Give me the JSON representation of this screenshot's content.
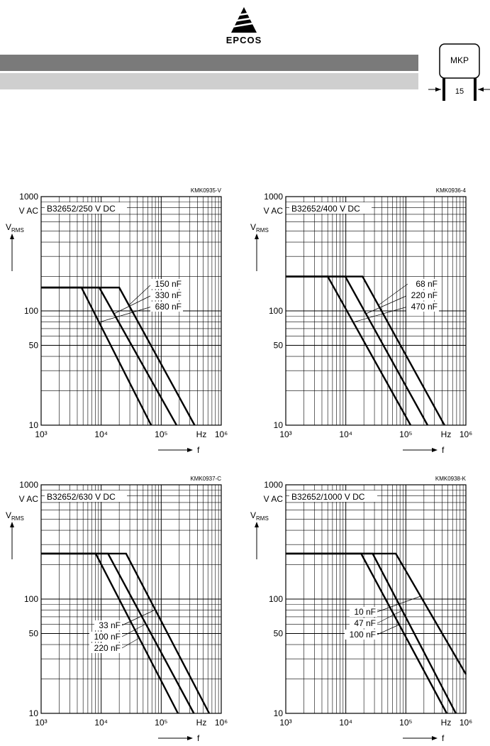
{
  "header": {
    "logo": "EPCOS",
    "package": "MKP",
    "pitch": "15"
  },
  "chart_data": [
    {
      "type": "line",
      "title": "KMK0935-V",
      "subtitle": "B32652/250 V DC",
      "xlabel": "f",
      "xunit": "Hz",
      "ylabel": "V",
      "ylabel_sub": "RMS",
      "yunit": "V AC",
      "log_x": true,
      "log_y": true,
      "grid": true,
      "color": "#000000",
      "xlim": [
        1000,
        1000000
      ],
      "ylim": [
        10,
        1000
      ],
      "xticks": [
        {
          "value": 1000,
          "label": "10³"
        },
        {
          "value": 10000,
          "label": "10⁴"
        },
        {
          "value": 100000,
          "label": "10⁵"
        },
        {
          "value": 1000000,
          "label": "10⁶"
        }
      ],
      "yticks": [
        10,
        50,
        100,
        1000
      ],
      "series": [
        {
          "name": "150 nF",
          "x": [
            1000,
            20000,
            360000
          ],
          "values": [
            160,
            160,
            10
          ]
        },
        {
          "name": "330 nF",
          "x": [
            1000,
            9300,
            180000
          ],
          "values": [
            160,
            160,
            10
          ]
        },
        {
          "name": "680 nF",
          "x": [
            1000,
            4700,
            68000
          ],
          "values": [
            160,
            160,
            10
          ]
        }
      ]
    },
    {
      "type": "line",
      "title": "KMK0936-4",
      "subtitle": "B32652/400 V DC",
      "xlabel": "f",
      "xunit": "Hz",
      "ylabel": "V",
      "ylabel_sub": "RMS",
      "yunit": "V AC",
      "log_x": true,
      "log_y": true,
      "grid": true,
      "color": "#000000",
      "xlim": [
        1000,
        1000000
      ],
      "ylim": [
        10,
        1000
      ],
      "xticks": [
        {
          "value": 1000,
          "label": "10³"
        },
        {
          "value": 10000,
          "label": "10⁴"
        },
        {
          "value": 100000,
          "label": "10⁵"
        },
        {
          "value": 1000000,
          "label": "10⁶"
        }
      ],
      "yticks": [
        10,
        50,
        100,
        1000
      ],
      "series": [
        {
          "name": "68 nF",
          "x": [
            1000,
            19000,
            440000
          ],
          "values": [
            200,
            200,
            10
          ]
        },
        {
          "name": "220 nF",
          "x": [
            1000,
            9800,
            230000
          ],
          "values": [
            200,
            200,
            10
          ]
        },
        {
          "name": "470 nF",
          "x": [
            1000,
            5000,
            120000
          ],
          "values": [
            200,
            200,
            10
          ]
        }
      ]
    },
    {
      "type": "line",
      "title": "KMK0937-C",
      "subtitle": "B32652/630 V DC",
      "xlabel": "f",
      "xunit": "Hz",
      "ylabel": "V",
      "ylabel_sub": "RMS",
      "yunit": "V AC",
      "log_x": true,
      "log_y": true,
      "grid": true,
      "color": "#000000",
      "xlim": [
        1000,
        1000000
      ],
      "ylim": [
        10,
        1000
      ],
      "xticks": [
        {
          "value": 1000,
          "label": "10³"
        },
        {
          "value": 10000,
          "label": "10⁴"
        },
        {
          "value": 100000,
          "label": "10⁵"
        },
        {
          "value": 1000000,
          "label": "10⁶"
        }
      ],
      "yticks": [
        10,
        50,
        100,
        1000
      ],
      "series": [
        {
          "name": "33 nF",
          "x": [
            1000,
            26000,
            630000
          ],
          "values": [
            250,
            250,
            10
          ]
        },
        {
          "name": "100 nF",
          "x": [
            1000,
            13000,
            350000
          ],
          "values": [
            250,
            250,
            10
          ]
        },
        {
          "name": "220 nF",
          "x": [
            1000,
            8100,
            190000
          ],
          "values": [
            250,
            250,
            10
          ]
        }
      ]
    },
    {
      "type": "line",
      "title": "KMK0938-K",
      "subtitle": "B32652/1000 V DC",
      "xlabel": "f",
      "xunit": "Hz",
      "ylabel": "V",
      "ylabel_sub": "RMS",
      "yunit": "V AC",
      "log_x": true,
      "log_y": true,
      "grid": true,
      "color": "#000000",
      "xlim": [
        1000,
        1000000
      ],
      "ylim": [
        10,
        1000
      ],
      "xticks": [
        {
          "value": 1000,
          "label": "10³"
        },
        {
          "value": 10000,
          "label": "10⁴"
        },
        {
          "value": 100000,
          "label": "10⁵"
        },
        {
          "value": 1000000,
          "label": "10⁶"
        }
      ],
      "yticks": [
        10,
        50,
        100,
        1000
      ],
      "series": [
        {
          "name": "10 nF",
          "x": [
            1000,
            68000,
            1000000
          ],
          "values": [
            250,
            250,
            22
          ]
        },
        {
          "name": "47 nF",
          "x": [
            1000,
            28000,
            680000
          ],
          "values": [
            250,
            250,
            10
          ]
        },
        {
          "name": "100 nF",
          "x": [
            1000,
            18000,
            480000
          ],
          "values": [
            250,
            250,
            10
          ]
        }
      ]
    }
  ]
}
